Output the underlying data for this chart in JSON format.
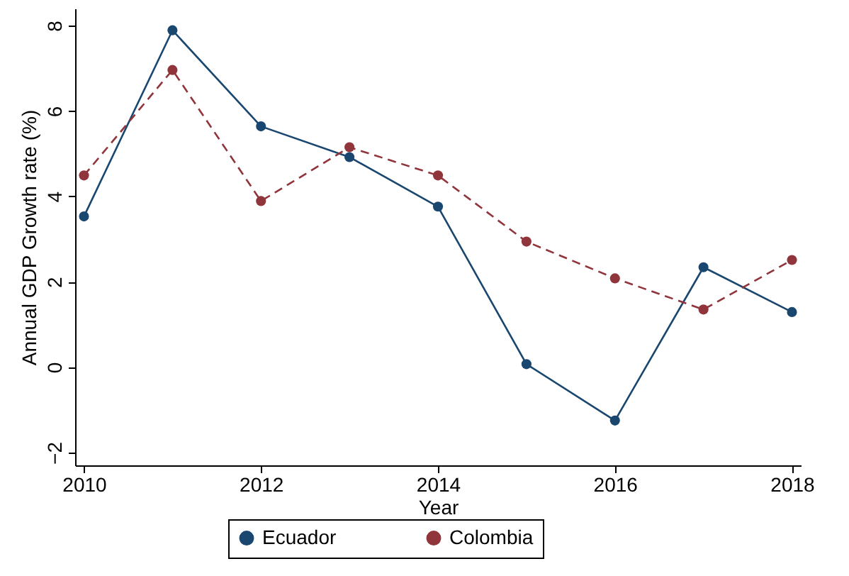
{
  "chart_data": {
    "type": "line",
    "xlabel": "Year",
    "ylabel": "Annual GDP Growth rate (%)",
    "x": [
      2010,
      2011,
      2012,
      2013,
      2014,
      2015,
      2016,
      2017,
      2018
    ],
    "series": [
      {
        "name": "Ecuador",
        "color": "#1a476f",
        "line_style": "solid",
        "values": [
          3.53,
          7.89,
          5.64,
          4.92,
          3.76,
          0.07,
          -1.25,
          2.34,
          1.29
        ]
      },
      {
        "name": "Colombia",
        "color": "#90353b",
        "line_style": "dashed",
        "values": [
          4.49,
          6.96,
          3.89,
          5.15,
          4.49,
          2.94,
          2.08,
          1.35,
          2.51
        ]
      }
    ],
    "xlim": [
      2009.9,
      2018.1
    ],
    "xticks": [
      2010,
      2012,
      2014,
      2016,
      2018
    ],
    "ylim": [
      -2.3,
      8.4
    ],
    "yticks": [
      -2,
      0,
      2,
      4,
      6,
      8
    ],
    "grid": false,
    "legend": "bottom",
    "marker": "circle"
  }
}
